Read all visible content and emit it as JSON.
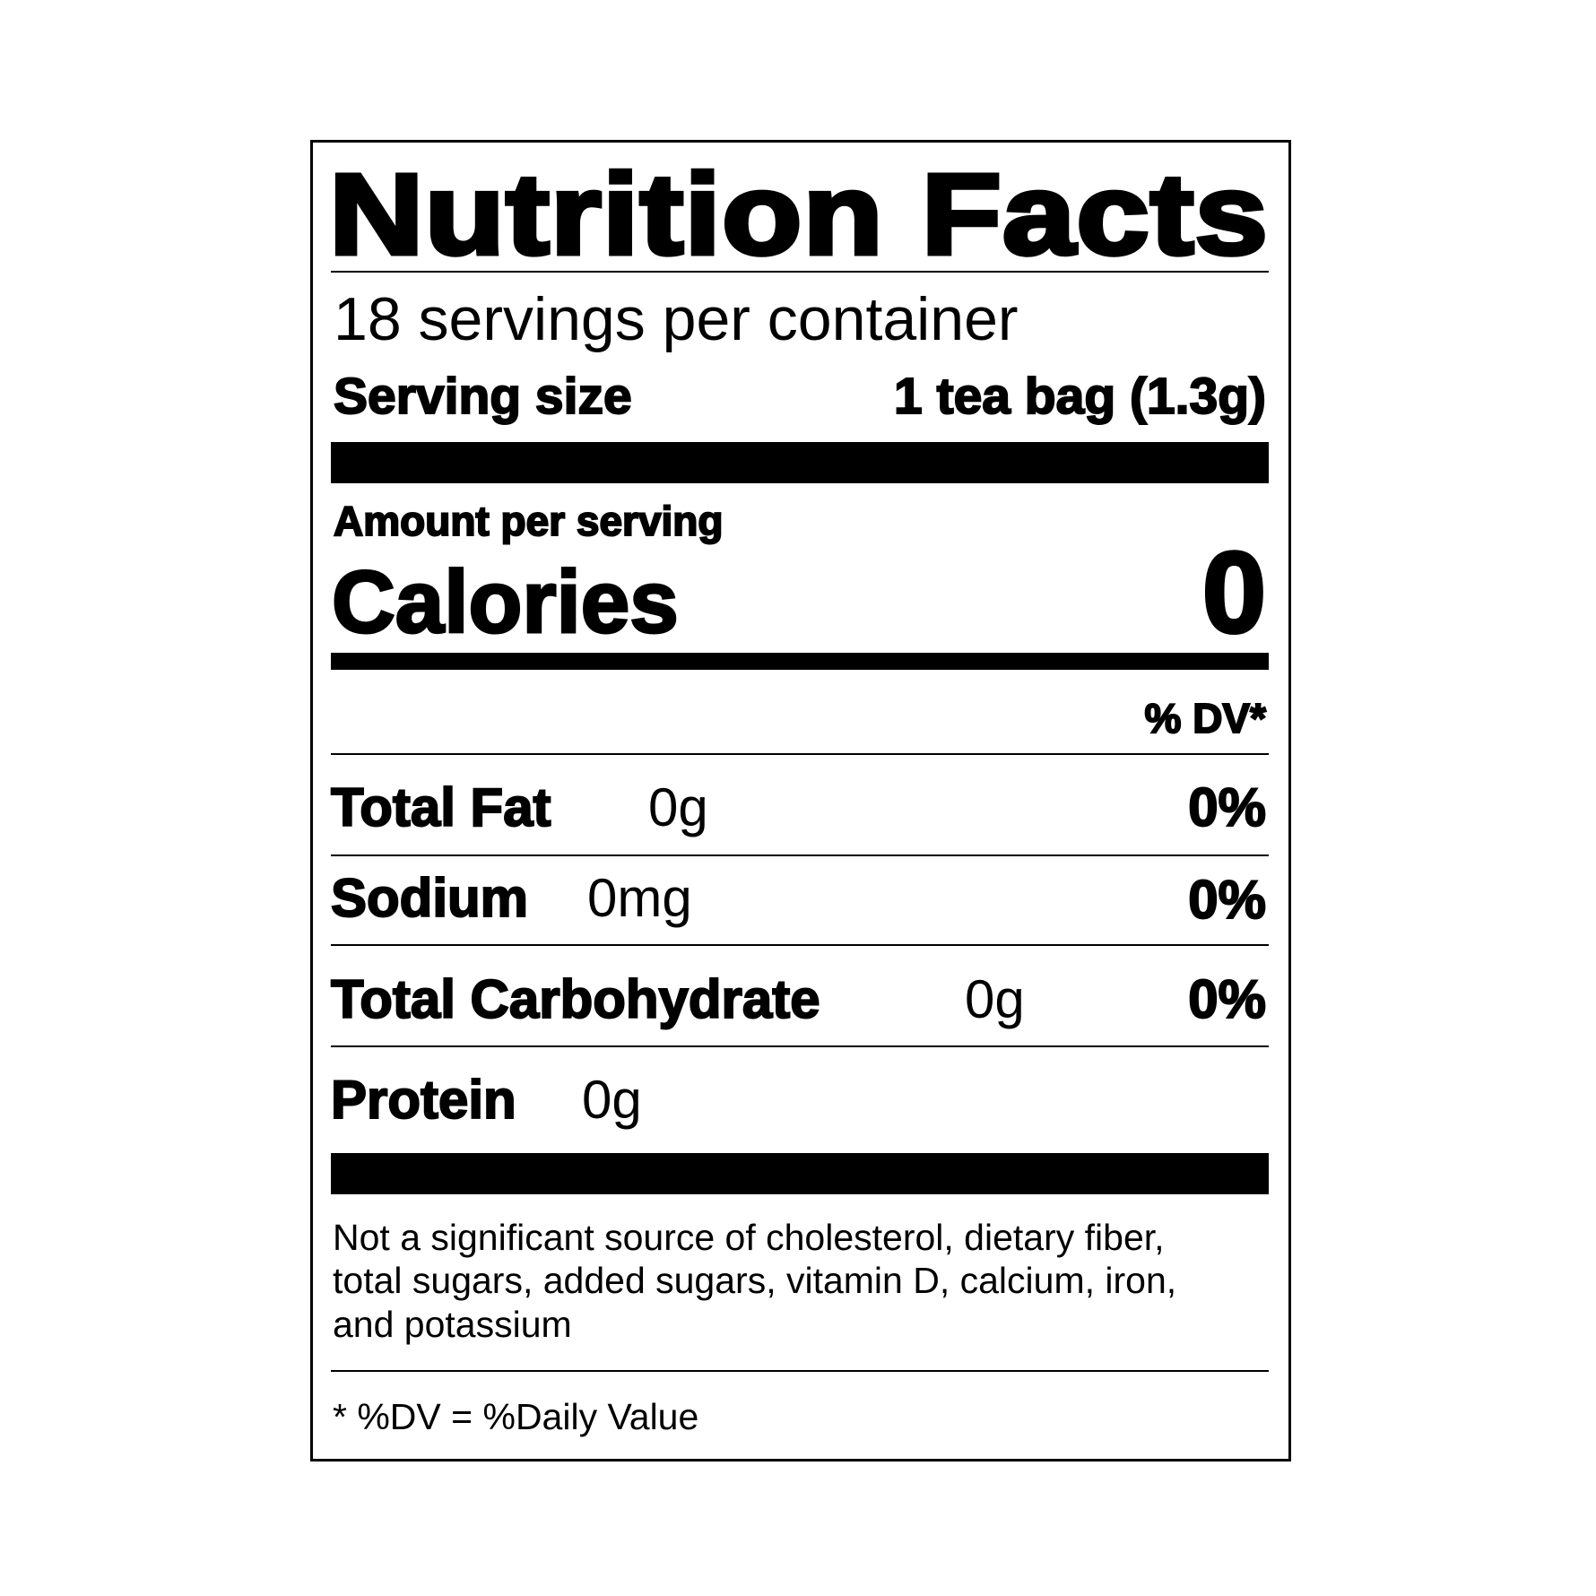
{
  "label": {
    "title": "Nutrition Facts",
    "servings_per_container": "18 servings per container",
    "serving_size_label": "Serving size",
    "serving_size_value": "1 tea bag (1.3g)",
    "amount_per_serving": "Amount per serving",
    "calories_label": "Calories",
    "calories_value": "0",
    "dv_header": "% DV*",
    "nutrients": [
      {
        "name": "Total Fat",
        "amount": "0g",
        "dv": "0%"
      },
      {
        "name": "Sodium",
        "amount": "0mg",
        "dv": "0%"
      },
      {
        "name": "Total Carbohydrate",
        "amount": "0g",
        "dv": "0%"
      },
      {
        "name": "Protein",
        "amount": "0g",
        "dv": ""
      }
    ],
    "footnote_lines": [
      "Not a significant source of cholesterol, dietary fiber,",
      "total sugars, added sugars, vitamin D, calcium, iron,",
      "and potassium"
    ],
    "dv_note": "* %DV = %Daily Value"
  }
}
